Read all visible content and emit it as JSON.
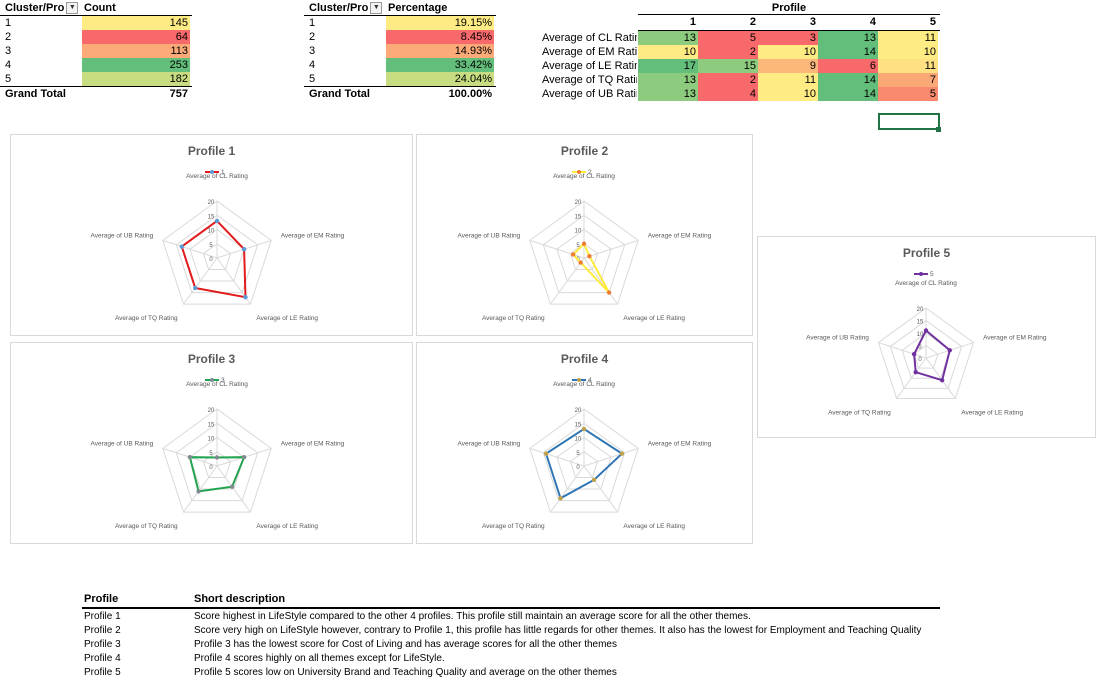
{
  "count_table": {
    "header_key": "Cluster/Pro",
    "header_value": "Count",
    "rows": [
      {
        "key": "1",
        "value": "145",
        "color": "#ffeb84"
      },
      {
        "key": "2",
        "value": "64",
        "color": "#f8696b"
      },
      {
        "key": "3",
        "value": "113",
        "color": "#fcaa78"
      },
      {
        "key": "4",
        "value": "253",
        "color": "#63be7b"
      },
      {
        "key": "5",
        "value": "182",
        "color": "#c8dd81"
      }
    ],
    "total_label": "Grand Total",
    "total_value": "757"
  },
  "pct_table": {
    "header_key": "Cluster/Pro",
    "header_value": "Percentage",
    "rows": [
      {
        "key": "1",
        "value": "19.15%",
        "color": "#ffeb84"
      },
      {
        "key": "2",
        "value": "8.45%",
        "color": "#f8696b"
      },
      {
        "key": "3",
        "value": "14.93%",
        "color": "#fcaa78"
      },
      {
        "key": "4",
        "value": "33.42%",
        "color": "#63be7b"
      },
      {
        "key": "5",
        "value": "24.04%",
        "color": "#c8dd81"
      }
    ],
    "total_label": "Grand Total",
    "total_value": "100.00%"
  },
  "profile_table": {
    "title": "Profile",
    "columns": [
      "1",
      "2",
      "3",
      "4",
      "5"
    ],
    "rows": [
      {
        "label": "Average of CL Rating",
        "values": [
          "13",
          "5",
          "3",
          "13",
          "11"
        ],
        "colors": [
          "#8dcb7e",
          "#f8696b",
          "#f8696b",
          "#63be7b",
          "#ffeb84"
        ]
      },
      {
        "label": "Average of EM Rating",
        "values": [
          "10",
          "2",
          "10",
          "14",
          "10"
        ],
        "colors": [
          "#ffeb84",
          "#f8696b",
          "#ffeb84",
          "#63be7b",
          "#ffeb84"
        ]
      },
      {
        "label": "Average of LE Rating",
        "values": [
          "17",
          "15",
          "9",
          "6",
          "11"
        ],
        "colors": [
          "#63be7b",
          "#8dcb7e",
          "#fcb77a",
          "#f8696b",
          "#ffe083"
        ]
      },
      {
        "label": "Average of TQ Rating",
        "values": [
          "13",
          "2",
          "11",
          "14",
          "7"
        ],
        "colors": [
          "#8dcb7e",
          "#f8696b",
          "#ffeb84",
          "#63be7b",
          "#fba877"
        ]
      },
      {
        "label": "Average of UB Rating",
        "values": [
          "13",
          "4",
          "10",
          "14",
          "5"
        ],
        "colors": [
          "#8dcb7e",
          "#f8696b",
          "#ffeb84",
          "#63be7b",
          "#f98a6f"
        ]
      }
    ]
  },
  "chart_data": [
    {
      "type": "radar",
      "title": "Profile 1",
      "series": [
        {
          "name": "1",
          "values": [
            13,
            10,
            17,
            13,
            13
          ],
          "color": "#e31a1c",
          "marker": "#5b9bd5"
        }
      ],
      "categories": [
        "Average of CL Rating",
        "Average of EM Rating",
        "Average of LE Rating",
        "Average of TQ Rating",
        "Average of UB Rating"
      ],
      "ticks": [
        "0",
        "5",
        "10",
        "15",
        "20"
      ],
      "rlim": [
        0,
        20
      ]
    },
    {
      "type": "radar",
      "title": "Profile 2",
      "series": [
        {
          "name": "2",
          "values": [
            5,
            2,
            15,
            2,
            4
          ],
          "color": "#ffeb3b",
          "marker": "#ed7d31"
        }
      ],
      "categories": [
        "Average of CL Rating",
        "Average of EM Rating",
        "Average of LE Rating",
        "Average of TQ Rating",
        "Average of UB Rating"
      ],
      "ticks": [
        "0",
        "5",
        "10",
        "15",
        "20"
      ],
      "rlim": [
        0,
        20
      ]
    },
    {
      "type": "radar",
      "title": "Profile 3",
      "series": [
        {
          "name": "3",
          "values": [
            3,
            10,
            9,
            11,
            10
          ],
          "color": "#22a350",
          "marker": "#7f8c8d"
        }
      ],
      "categories": [
        "Average of CL Rating",
        "Average of EM Rating",
        "Average of LE Rating",
        "Average of TQ Rating",
        "Average of UB Rating"
      ],
      "ticks": [
        "0",
        "5",
        "10",
        "15",
        "20"
      ],
      "rlim": [
        0,
        20
      ]
    },
    {
      "type": "radar",
      "title": "Profile 4",
      "series": [
        {
          "name": "4",
          "values": [
            13,
            14,
            6,
            14,
            14
          ],
          "color": "#2e75b6",
          "marker": "#bfa24b"
        }
      ],
      "categories": [
        "Average of CL Rating",
        "Average of EM Rating",
        "Average of LE Rating",
        "Average of TQ Rating",
        "Average of UB Rating"
      ],
      "ticks": [
        "0",
        "5",
        "10",
        "15",
        "20"
      ],
      "rlim": [
        0,
        20
      ]
    },
    {
      "type": "radar",
      "title": "Profile 5",
      "series": [
        {
          "name": "5",
          "values": [
            11,
            10,
            11,
            7,
            5
          ],
          "color": "#7030a0",
          "marker": "#7030a0"
        }
      ],
      "categories": [
        "Average of CL Rating",
        "Average of EM Rating",
        "Average of LE Rating",
        "Average of TQ Rating",
        "Average of UB Rating"
      ],
      "ticks": [
        "0",
        "5",
        "10",
        "15",
        "20"
      ],
      "rlim": [
        0,
        20
      ]
    }
  ],
  "descriptions": {
    "header_profile": "Profile",
    "header_desc": "Short description",
    "rows": [
      {
        "profile": "Profile 1",
        "text": "Score highest in LifeStyle compared to the other 4 profiles. This profile still maintain an average score for all the other themes."
      },
      {
        "profile": "Profile 2",
        "text": "Score very high on LifeStyle however, contrary to Profile 1, this profile has little regards for other themes. It also has the lowest for Employment and Teaching Quality"
      },
      {
        "profile": "Profile 3",
        "text": "Profile 3 has the lowest score for Cost of Living and has average scores for all the other themes"
      },
      {
        "profile": "Profile 4",
        "text": "Profile 4 scores highly on all themes except for LifeStyle."
      },
      {
        "profile": "Profile 5",
        "text": "Profile 5 scores low on University Brand and Teaching Quality and average on the other themes"
      }
    ]
  }
}
